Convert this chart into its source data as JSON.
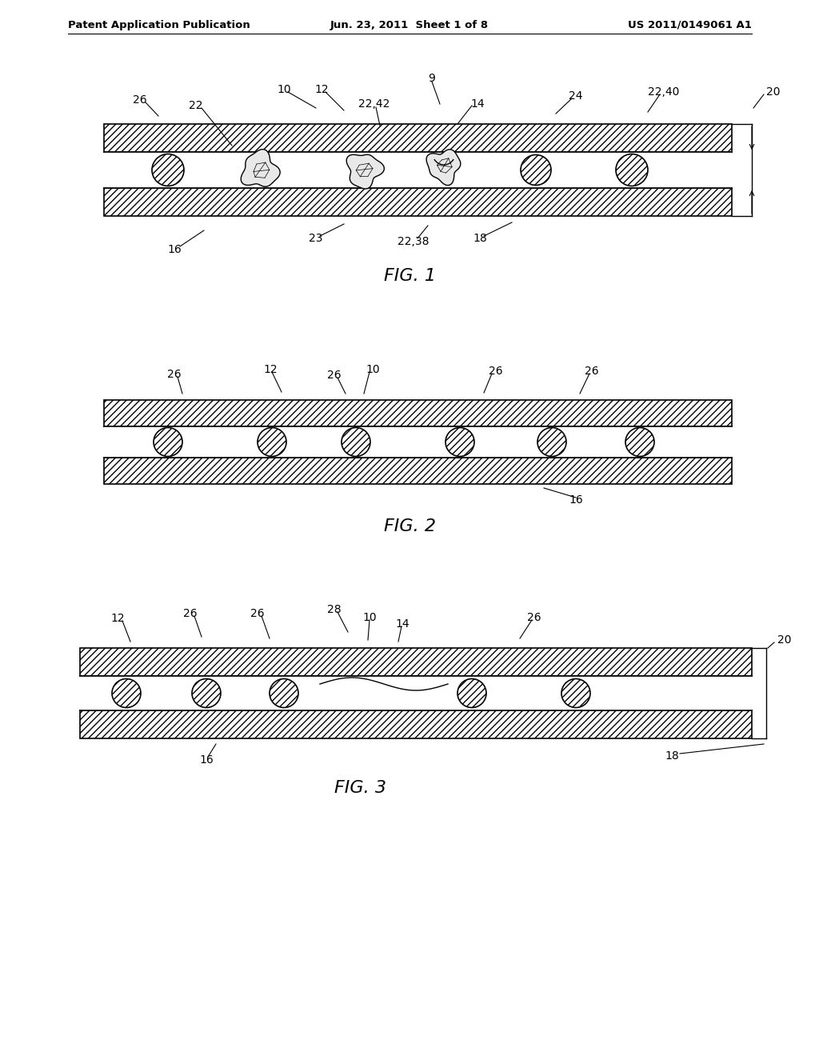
{
  "bg_color": "#ffffff",
  "header_left": "Patent Application Publication",
  "header_center": "Jun. 23, 2011  Sheet 1 of 8",
  "header_right": "US 2011/0149061 A1",
  "fig1_title": "FIG. 1",
  "fig2_title": "FIG. 2",
  "fig3_title": "FIG. 3",
  "label_fontsize": 10,
  "title_fontsize": 16,
  "header_fontsize": 9.5
}
